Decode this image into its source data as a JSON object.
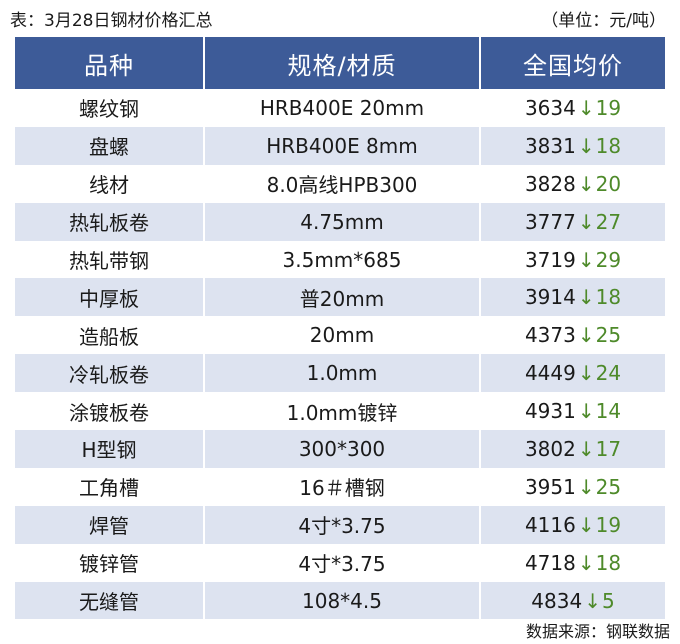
{
  "caption": {
    "title": "表：3月28日钢材价格汇总",
    "unit": "（单位：元/吨）"
  },
  "table": {
    "headers": [
      "品种",
      "规格/材质",
      "全国均价"
    ],
    "arrow_glyph": "↓",
    "change_color": "#4e8a2a",
    "header_color": "#3d5b98",
    "stripe_color": "#dde3f0",
    "rows": [
      {
        "product": "螺纹钢",
        "spec": "HRB400E 20mm",
        "price": "3634",
        "change": "19"
      },
      {
        "product": "盘螺",
        "spec": "HRB400E 8mm",
        "price": "3831",
        "change": "18"
      },
      {
        "product": "线材",
        "spec": "8.0高线HPB300",
        "price": "3828",
        "change": "20"
      },
      {
        "product": "热轧板卷",
        "spec": "4.75mm",
        "price": "3777",
        "change": "27"
      },
      {
        "product": "热轧带钢",
        "spec": "3.5mm*685",
        "price": "3719",
        "change": "29"
      },
      {
        "product": "中厚板",
        "spec": "普20mm",
        "price": "3914",
        "change": "18"
      },
      {
        "product": "造船板",
        "spec": "20mm",
        "price": "4373",
        "change": "25"
      },
      {
        "product": "冷轧板卷",
        "spec": "1.0mm",
        "price": "4449",
        "change": "24"
      },
      {
        "product": "涂镀板卷",
        "spec": "1.0mm镀锌",
        "price": "4931",
        "change": "14"
      },
      {
        "product": "H型钢",
        "spec": "300*300",
        "price": "3802",
        "change": "17"
      },
      {
        "product": "工角槽",
        "spec": "16＃槽钢",
        "price": "3951",
        "change": "25"
      },
      {
        "product": "焊管",
        "spec": "4寸*3.75",
        "price": "4116",
        "change": "19"
      },
      {
        "product": "镀锌管",
        "spec": "4寸*3.75",
        "price": "4718",
        "change": "18"
      },
      {
        "product": "无缝管",
        "spec": "108*4.5",
        "price": "4834",
        "change": "5"
      }
    ]
  },
  "footer": {
    "source": "数据来源：钢联数据"
  }
}
